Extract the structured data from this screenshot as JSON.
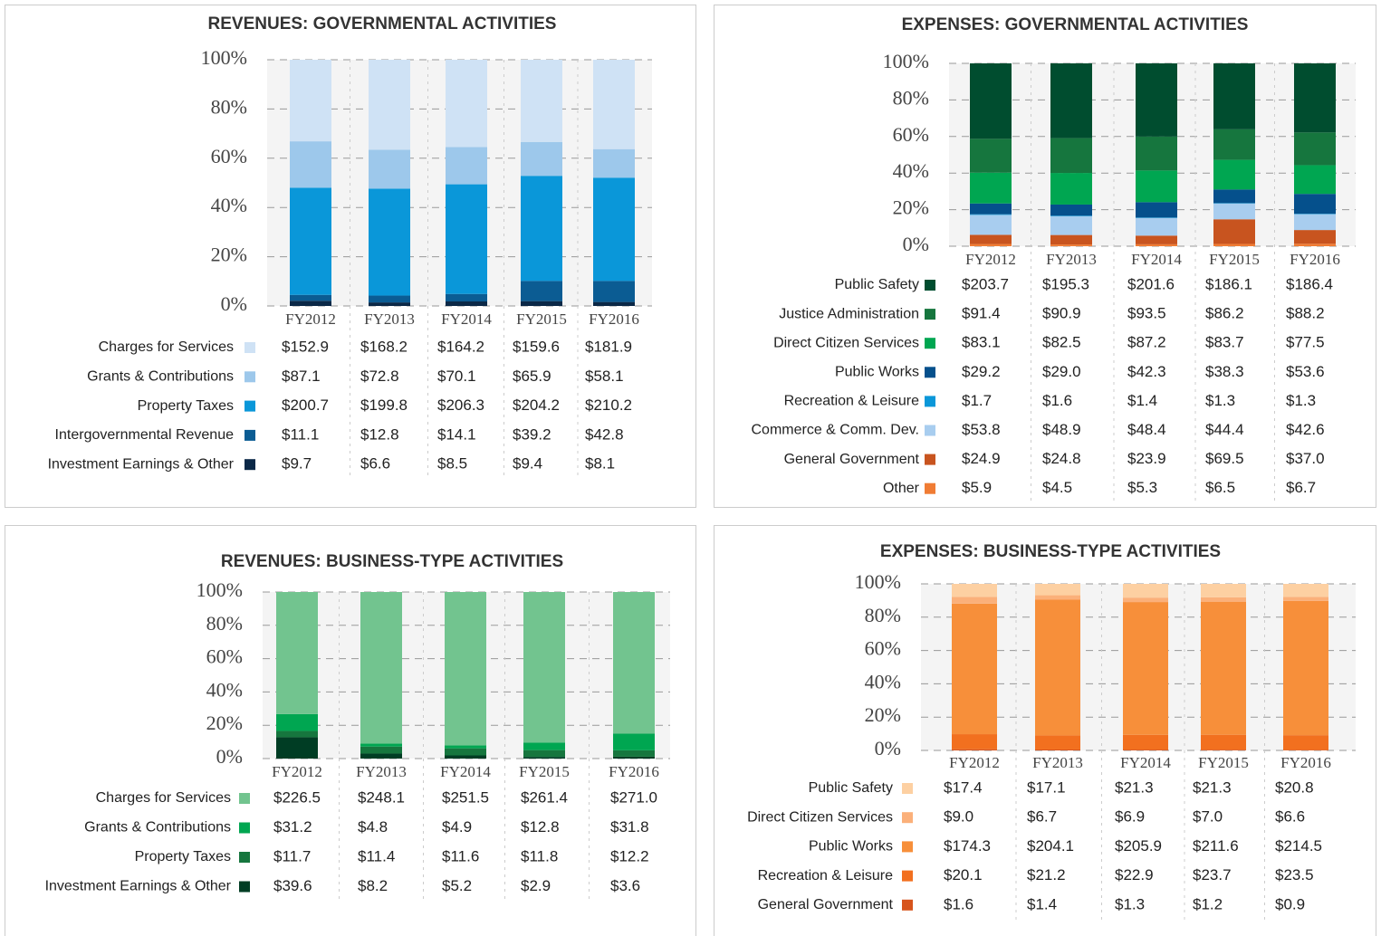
{
  "chart_data": [
    {
      "type": "bar",
      "stacked": "percent",
      "title": "REVENUES: GOVERNMENTAL ACTIVITIES",
      "categories": [
        "FY2012",
        "FY2013",
        "FY2014",
        "FY2015",
        "FY2016"
      ],
      "ylim": [
        0,
        100
      ],
      "yticks": [
        {
          "value": 0,
          "label": "0%"
        },
        {
          "value": 20,
          "label": "20%"
        },
        {
          "value": 40,
          "label": "40%"
        },
        {
          "value": 60,
          "label": "60%"
        },
        {
          "value": 80,
          "label": "80%"
        },
        {
          "value": 100,
          "label": "100%"
        }
      ],
      "grid": true,
      "series": [
        {
          "name": "Charges for Services",
          "color": "#cfe2f5",
          "values": [
            152.9,
            168.2,
            164.2,
            159.6,
            181.9
          ],
          "value_labels": [
            "$152.9",
            "$168.2",
            "$164.2",
            "$159.6",
            "$181.9"
          ]
        },
        {
          "name": "Grants & Contributions",
          "color": "#9dc8eb",
          "values": [
            87.1,
            72.8,
            70.1,
            65.9,
            58.1
          ],
          "value_labels": [
            "$87.1",
            "$72.8",
            "$70.1",
            "$65.9",
            "$58.1"
          ]
        },
        {
          "name": "Property Taxes",
          "color": "#0a97d9",
          "values": [
            200.7,
            199.8,
            206.3,
            204.2,
            210.2
          ],
          "value_labels": [
            "$200.7",
            "$199.8",
            "$206.3",
            "$204.2",
            "$210.2"
          ]
        },
        {
          "name": "Intergovernmental Revenue",
          "color": "#0b5c93",
          "values": [
            11.1,
            12.8,
            14.1,
            39.2,
            42.8
          ],
          "value_labels": [
            "$11.1",
            "$12.8",
            "$14.1",
            "$39.2",
            "$42.8"
          ]
        },
        {
          "name": "Investment Earnings & Other",
          "color": "#0b2847",
          "values": [
            9.7,
            6.6,
            8.5,
            9.4,
            8.1
          ],
          "value_labels": [
            "$9.7",
            "$6.6",
            "$8.5",
            "$9.4",
            "$8.1"
          ]
        }
      ]
    },
    {
      "type": "bar",
      "stacked": "percent",
      "title": "EXPENSES: GOVERNMENTAL ACTIVITIES",
      "categories": [
        "FY2012",
        "FY2013",
        "FY2014",
        "FY2015",
        "FY2016"
      ],
      "ylim": [
        0,
        100
      ],
      "yticks": [
        {
          "value": 0,
          "label": "0%"
        },
        {
          "value": 20,
          "label": "20%"
        },
        {
          "value": 40,
          "label": "40%"
        },
        {
          "value": 60,
          "label": "60%"
        },
        {
          "value": 80,
          "label": "80%"
        },
        {
          "value": 100,
          "label": "100%"
        }
      ],
      "grid": true,
      "series": [
        {
          "name": "Public Safety",
          "color": "#004d2f",
          "values": [
            203.7,
            195.3,
            201.6,
            186.1,
            186.4
          ],
          "value_labels": [
            "$203.7",
            "$195.3",
            "$201.6",
            "$186.1",
            "$186.4"
          ]
        },
        {
          "name": "Justice Administration",
          "color": "#16763e",
          "values": [
            91.4,
            90.9,
            93.5,
            86.2,
            88.2
          ],
          "value_labels": [
            "$91.4",
            "$90.9",
            "$93.5",
            "$86.2",
            "$88.2"
          ]
        },
        {
          "name": "Direct Citizen Services",
          "color": "#00a651",
          "values": [
            83.1,
            82.5,
            87.2,
            83.7,
            77.5
          ],
          "value_labels": [
            "$83.1",
            "$82.5",
            "$87.2",
            "$83.7",
            "$77.5"
          ]
        },
        {
          "name": "Public Works",
          "color": "#05508c",
          "values": [
            29.2,
            29.0,
            42.3,
            38.3,
            53.6
          ],
          "value_labels": [
            "$29.2",
            "$29.0",
            "$42.3",
            "$38.3",
            "$53.6"
          ]
        },
        {
          "name": "Recreation & Leisure",
          "color": "#0a97d9",
          "values": [
            1.7,
            1.6,
            1.4,
            1.3,
            1.3
          ],
          "value_labels": [
            "$1.7",
            "$1.6",
            "$1.4",
            "$1.3",
            "$1.3"
          ]
        },
        {
          "name": "Commerce & Comm. Dev.",
          "color": "#a8cdef",
          "values": [
            53.8,
            48.9,
            48.4,
            44.4,
            42.6
          ],
          "value_labels": [
            "$53.8",
            "$48.9",
            "$48.4",
            "$44.4",
            "$42.6"
          ]
        },
        {
          "name": "General Government",
          "color": "#c8541f",
          "values": [
            24.9,
            24.8,
            23.9,
            69.5,
            37.0
          ],
          "value_labels": [
            "$24.9",
            "$24.8",
            "$23.9",
            "$69.5",
            "$37.0"
          ]
        },
        {
          "name": "Other",
          "color": "#f07c34",
          "values": [
            5.9,
            4.5,
            5.3,
            6.5,
            6.7
          ],
          "value_labels": [
            "$5.9",
            "$4.5",
            "$5.3",
            "$6.5",
            "$6.7"
          ]
        }
      ]
    },
    {
      "type": "bar",
      "stacked": "percent",
      "title": "REVENUES: BUSINESS-TYPE ACTIVITIES",
      "categories": [
        "FY2012",
        "FY2013",
        "FY2014",
        "FY2015",
        "FY2016"
      ],
      "ylim": [
        0,
        100
      ],
      "yticks": [
        {
          "value": 0,
          "label": "0%"
        },
        {
          "value": 20,
          "label": "20%"
        },
        {
          "value": 40,
          "label": "40%"
        },
        {
          "value": 60,
          "label": "60%"
        },
        {
          "value": 80,
          "label": "80%"
        },
        {
          "value": 100,
          "label": "100%"
        }
      ],
      "grid": true,
      "series": [
        {
          "name": "Charges for Services",
          "color": "#72c48f",
          "values": [
            226.5,
            248.1,
            251.5,
            261.4,
            271.0
          ],
          "value_labels": [
            "$226.5",
            "$248.1",
            "$251.5",
            "$261.4",
            "$271.0"
          ]
        },
        {
          "name": "Grants & Contributions",
          "color": "#00a651",
          "values": [
            31.2,
            4.8,
            4.9,
            12.8,
            31.8
          ],
          "value_labels": [
            "$31.2",
            "$4.8",
            "$4.9",
            "$12.8",
            "$31.8"
          ]
        },
        {
          "name": "Property Taxes",
          "color": "#16763e",
          "values": [
            11.7,
            11.4,
            11.6,
            11.8,
            12.2
          ],
          "value_labels": [
            "$11.7",
            "$11.4",
            "$11.6",
            "$11.8",
            "$12.2"
          ]
        },
        {
          "name": "Investment Earnings & Other",
          "color": "#003d24",
          "values": [
            39.6,
            8.2,
            5.2,
            2.9,
            3.6
          ],
          "value_labels": [
            "$39.6",
            "$8.2",
            "$5.2",
            "$2.9",
            "$3.6"
          ]
        }
      ]
    },
    {
      "type": "bar",
      "stacked": "percent",
      "title": "EXPENSES: BUSINESS-TYPE ACTIVITIES",
      "categories": [
        "FY2012",
        "FY2013",
        "FY2014",
        "FY2015",
        "FY2016"
      ],
      "ylim": [
        0,
        100
      ],
      "yticks": [
        {
          "value": 0,
          "label": "0%"
        },
        {
          "value": 20,
          "label": "20%"
        },
        {
          "value": 40,
          "label": "40%"
        },
        {
          "value": 60,
          "label": "60%"
        },
        {
          "value": 80,
          "label": "80%"
        },
        {
          "value": 100,
          "label": "100%"
        }
      ],
      "grid": true,
      "series": [
        {
          "name": "Public Safety",
          "color": "#fdd0a2",
          "values": [
            17.4,
            17.1,
            21.3,
            21.3,
            20.8
          ],
          "value_labels": [
            "$17.4",
            "$17.1",
            "$21.3",
            "$21.3",
            "$20.8"
          ]
        },
        {
          "name": "Direct Citizen Services",
          "color": "#fbb07a",
          "values": [
            9.0,
            6.7,
            6.9,
            7.0,
            6.6
          ],
          "value_labels": [
            "$9.0",
            "$6.7",
            "$6.9",
            "$7.0",
            "$6.6"
          ]
        },
        {
          "name": "Public Works",
          "color": "#f78f3a",
          "values": [
            174.3,
            204.1,
            205.9,
            211.6,
            214.5
          ],
          "value_labels": [
            "$174.3",
            "$204.1",
            "$205.9",
            "$211.6",
            "$214.5"
          ]
        },
        {
          "name": "Recreation & Leisure",
          "color": "#f2701f",
          "values": [
            20.1,
            21.2,
            22.9,
            23.7,
            23.5
          ],
          "value_labels": [
            "$20.1",
            "$21.2",
            "$22.9",
            "$23.7",
            "$23.5"
          ]
        },
        {
          "name": "General Government",
          "color": "#d7541c",
          "values": [
            1.6,
            1.4,
            1.3,
            1.2,
            0.9
          ],
          "value_labels": [
            "$1.6",
            "$1.4",
            "$1.3",
            "$1.2",
            "$0.9"
          ]
        }
      ]
    }
  ]
}
